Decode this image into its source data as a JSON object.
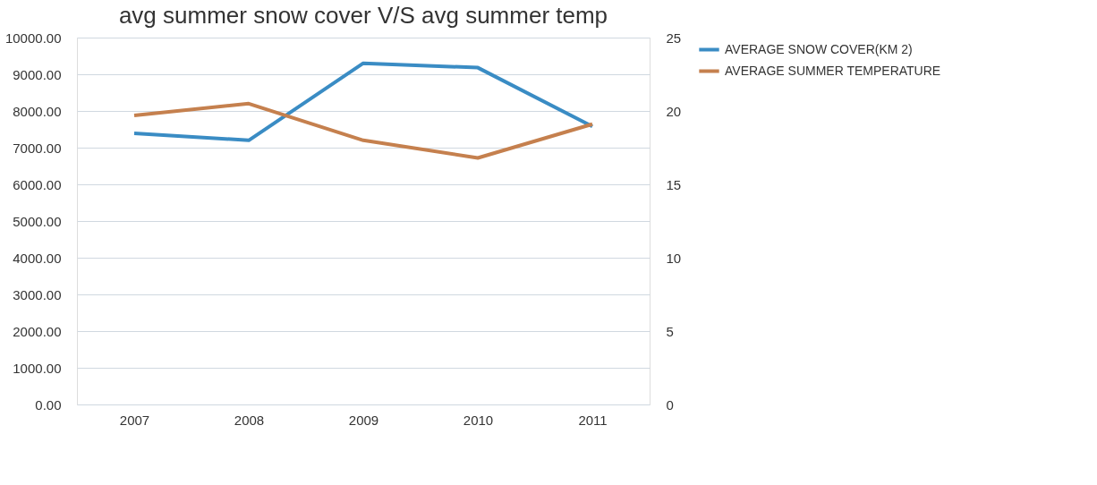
{
  "chart_data": {
    "type": "line",
    "title": "avg summer snow cover V/S avg summer temp",
    "categories": [
      "2007",
      "2008",
      "2009",
      "2010",
      "2011"
    ],
    "series": [
      {
        "name": "AVERAGE SNOW COVER(KM 2)",
        "color": "#3a8cc4",
        "values": [
          7390,
          7200,
          9300,
          9180,
          7580
        ]
      },
      {
        "name": "AVERAGE SUMMER TEMPERATURE",
        "color": "#c5804e",
        "values": [
          19.7,
          20.5,
          18.0,
          16.8,
          19.1
        ],
        "axis": "y2"
      }
    ],
    "ylim": [
      0,
      10000
    ],
    "yticks": [
      {
        "value": 0,
        "label": "0.00"
      },
      {
        "value": 1000,
        "label": "1000.00"
      },
      {
        "value": 2000,
        "label": "2000.00"
      },
      {
        "value": 3000,
        "label": "3000.00"
      },
      {
        "value": 4000,
        "label": "4000.00"
      },
      {
        "value": 5000,
        "label": "5000.00"
      },
      {
        "value": 6000,
        "label": "6000.00"
      },
      {
        "value": 7000,
        "label": "7000.00"
      },
      {
        "value": 8000,
        "label": "8000.00"
      },
      {
        "value": 9000,
        "label": "9000.00"
      },
      {
        "value": 10000,
        "label": "10000.00"
      }
    ],
    "y2lim": [
      0,
      25
    ],
    "y2ticks": [
      0,
      5,
      10,
      15,
      20,
      25
    ],
    "grid": "y",
    "legend": "right",
    "marker": "none",
    "line_style": "solid"
  }
}
